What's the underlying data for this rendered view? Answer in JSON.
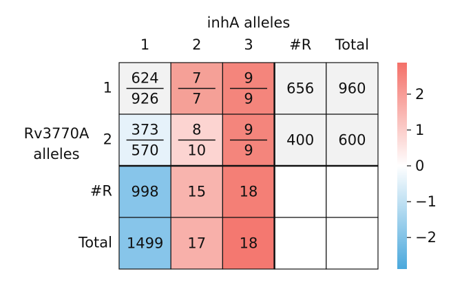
{
  "title": "inhA alleles",
  "columns": [
    "1",
    "2",
    "3",
    "#R",
    "Total"
  ],
  "row_title": [
    "Rv3770A",
    "alleles"
  ],
  "rows": [
    "1",
    "2",
    "#R",
    "Total"
  ],
  "cells": [
    [
      {
        "num": "624",
        "den": "926",
        "color": "#f2f2f2"
      },
      {
        "num": "7",
        "den": "7",
        "color": "#f5a097"
      },
      {
        "num": "9",
        "den": "9",
        "color": "#f4857c"
      },
      {
        "text": "656",
        "color": "#f2f2f2"
      },
      {
        "text": "960",
        "color": "#f2f2f2"
      }
    ],
    [
      {
        "num": "373",
        "den": "570",
        "color": "#e6f2fa"
      },
      {
        "num": "8",
        "den": "10",
        "color": "#fcd4d1"
      },
      {
        "num": "9",
        "den": "9",
        "color": "#f4857c"
      },
      {
        "text": "400",
        "color": "#f2f2f2"
      },
      {
        "text": "600",
        "color": "#f2f2f2"
      }
    ],
    [
      {
        "text": "998",
        "color": "#87c5ea"
      },
      {
        "text": "15",
        "color": "#f8b4ae"
      },
      {
        "text": "18",
        "color": "#f47f76"
      },
      null,
      null
    ],
    [
      {
        "text": "1499",
        "color": "#87c5ea"
      },
      {
        "text": "17",
        "color": "#f8b0aa"
      },
      {
        "text": "18",
        "color": "#f47870"
      },
      null,
      null
    ]
  ],
  "colorbar": {
    "lim": [
      -2.88,
      2.88
    ],
    "colors": [
      "#4aa8dc",
      "#ffffff",
      "#f47068"
    ],
    "ticks": [
      {
        "value": -2,
        "label": "−2"
      },
      {
        "value": -1,
        "label": "−1"
      },
      0,
      1,
      2
    ]
  }
}
